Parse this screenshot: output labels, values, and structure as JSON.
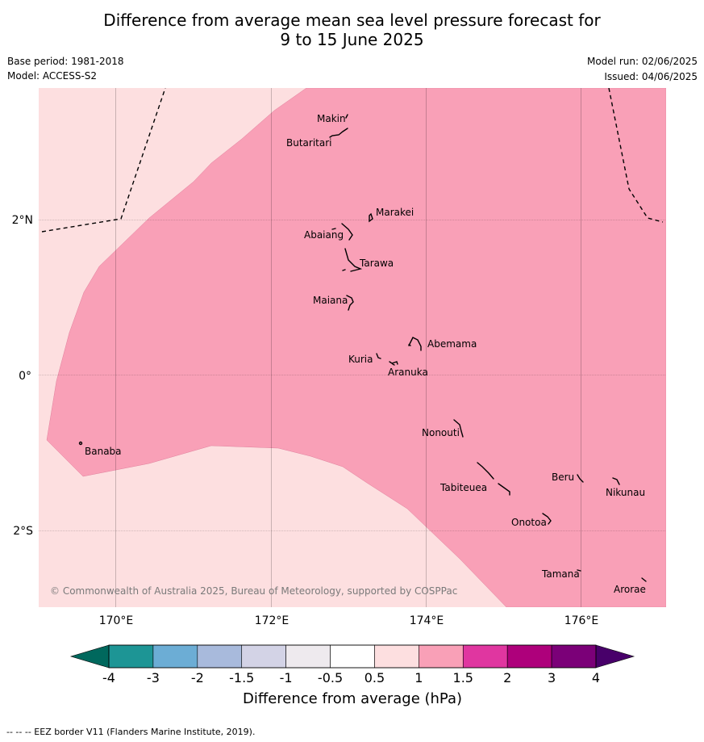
{
  "title": {
    "line1": "Difference from average mean sea level pressure forecast for",
    "line2": "9 to 15 June 2025"
  },
  "meta": {
    "base_period": "Base period: 1981-2018",
    "model": "Model: ACCESS-S2",
    "model_run": "Model run: 02/06/2025",
    "issued": "Issued: 04/06/2025"
  },
  "map": {
    "lon_ticks": [
      "170°E",
      "172°E",
      "174°E",
      "176°E"
    ],
    "lat_ticks": [
      "2°N",
      "0°",
      "2°S"
    ],
    "islands": [
      {
        "name": "Makin"
      },
      {
        "name": "Butaritari"
      },
      {
        "name": "Marakei"
      },
      {
        "name": "Abaiang"
      },
      {
        "name": "Tarawa"
      },
      {
        "name": "Maiana"
      },
      {
        "name": "Abemama"
      },
      {
        "name": "Kuria"
      },
      {
        "name": "Aranuka"
      },
      {
        "name": "Banaba"
      },
      {
        "name": "Nonouti"
      },
      {
        "name": "Tabiteuea"
      },
      {
        "name": "Beru"
      },
      {
        "name": "Nikunau"
      },
      {
        "name": "Onotoa"
      },
      {
        "name": "Tamana"
      },
      {
        "name": "Arorae"
      }
    ],
    "copyright": "© Commonwealth of Australia 2025, Bureau of Meteorology, supported by COSPPac",
    "colors": {
      "band_0.5_1": "#fddfe0",
      "band_1_1.5": "#f9a0b7"
    }
  },
  "colorbar": {
    "label": "Difference from average (hPa)",
    "tick_labels": [
      "-4",
      "-3",
      "-2",
      "-1.5",
      "-1",
      "-0.5",
      "0.5",
      "1",
      "1.5",
      "2",
      "3",
      "4"
    ],
    "colors": [
      "#1d9595",
      "#6cadd5",
      "#a8badc",
      "#d3d3e6",
      "#eeeaee",
      "#ffffff",
      "#fddfe0",
      "#f9a0b7",
      "#e036a0",
      "#ae007b",
      "#7b0078"
    ],
    "extend_low_color": "#00685d",
    "extend_high_color": "#48006a"
  },
  "footer": {
    "eez_note": "--  --  -- EEZ border V11 (Flanders Marine Institute, 2019)."
  }
}
